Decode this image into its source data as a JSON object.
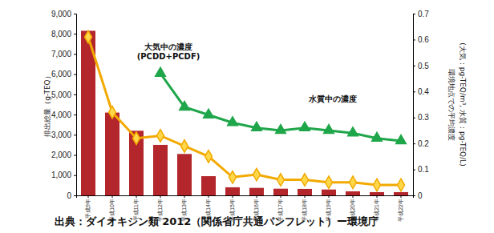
{
  "chart_data": {
    "type": "bar",
    "categories": [
      "平成9年",
      "平成10年",
      "平成11年",
      "平成12年",
      "平成13年",
      "平成14年",
      "平成15年",
      "平成16年",
      "平成17年",
      "平成18年",
      "平成19年",
      "平成20年",
      "平成21年",
      "平成22年"
    ],
    "y_label": "排出総量（g-TEQ）",
    "y2_label": [
      "環境地点での平均濃度",
      "(大気：pg-TEQ/m³, 水質：pg-TEQ/L)"
    ],
    "source": "出典：ダイオキシン類 2012（関係省庁共通パンフレット）ー環境庁",
    "ylim": [
      0,
      9000
    ],
    "yticks": [
      0,
      {
        "value": 1000,
        "label": "1,000"
      },
      {
        "value": 2000,
        "label": "2,000"
      },
      {
        "value": 3000,
        "label": "3,000"
      },
      {
        "value": 4000,
        "label": "4,000"
      },
      {
        "value": 5000,
        "label": "5,000"
      },
      {
        "value": 6000,
        "label": "6,000"
      },
      {
        "value": 7000,
        "label": "7,000"
      },
      {
        "value": 8000,
        "label": "8,000"
      },
      {
        "value": 9000,
        "label": "9,000"
      }
    ],
    "y2lim": [
      0,
      0.7
    ],
    "y2ticks": [
      0,
      0.1,
      0.2,
      0.3,
      0.4,
      0.5,
      0.6,
      0.7
    ],
    "grid": false,
    "series": [
      {
        "type": "bar",
        "color": "#b3262b",
        "values": [
          8150,
          4100,
          3200,
          2500,
          2050,
          950,
          400,
          370,
          330,
          320,
          290,
          200,
          160,
          160
        ]
      },
      {
        "name": "大気中の濃度(PCDD+PCDF)",
        "type": "line",
        "axis": "y2",
        "color": "#f2a900",
        "marker": "diamond",
        "values": [
          0.61,
          0.32,
          0.22,
          0.23,
          0.19,
          0.15,
          0.07,
          0.08,
          0.06,
          0.06,
          0.05,
          0.05,
          0.04,
          0.04
        ]
      },
      {
        "name": "水質中の濃度",
        "type": "line",
        "axis": "y2",
        "color": "#1fa64a",
        "marker": "triangle",
        "values": [
          null,
          null,
          null,
          0.47,
          0.34,
          0.31,
          0.28,
          0.26,
          0.25,
          0.26,
          0.25,
          0.24,
          0.22,
          0.21
        ]
      }
    ]
  }
}
